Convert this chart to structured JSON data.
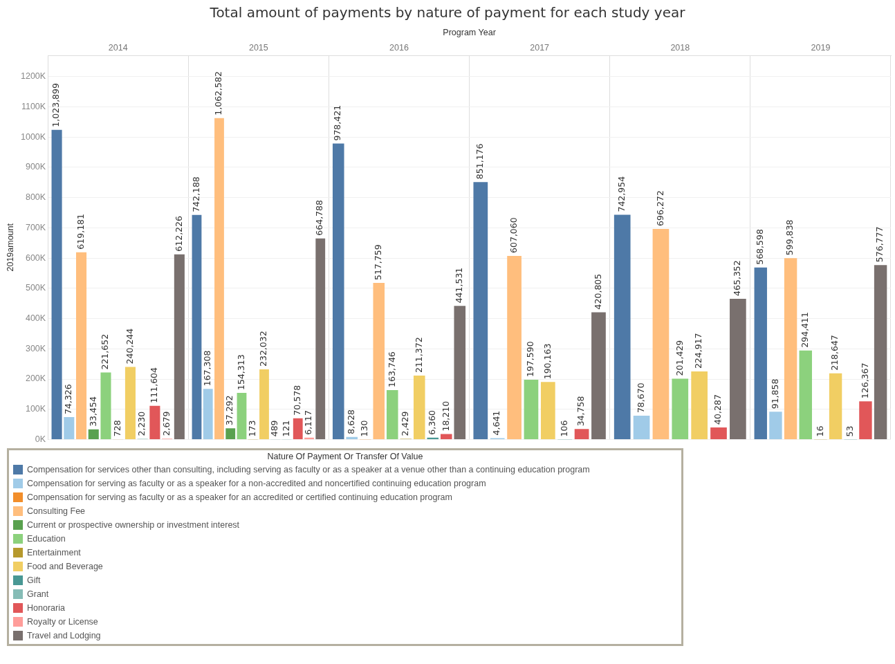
{
  "chart_data": {
    "type": "bar",
    "title": "Total amount of payments by nature of payment for each study year",
    "xlabel": "Program Year",
    "ylabel": "2019amount",
    "legend_title": "Nature Of Payment Or Transfer Of Value",
    "categories": [
      "2014",
      "2015",
      "2016",
      "2017",
      "2018",
      "2019"
    ],
    "series": [
      {
        "name": "Compensation for services other than consulting, including serving as faculty or as a speaker at a venue other than a continuing education program",
        "color": "#4e79a7",
        "values": [
          1023899,
          742188,
          978421,
          851176,
          742954,
          568598
        ],
        "value_labels": [
          "1,023,899",
          "742,188",
          "978,421",
          "851,176",
          "742,954",
          "568,598"
        ]
      },
      {
        "name": "Compensation for serving as faculty or as a speaker for a non-accredited and noncertified continuing education program",
        "color": "#a0cbe8",
        "values": [
          74326,
          167308,
          8628,
          4641,
          78670,
          91858
        ],
        "value_labels": [
          "74,326",
          "167,308",
          "8,628",
          "4,641",
          "78,670",
          "91,858"
        ]
      },
      {
        "name": "Compensation for serving as faculty or as a speaker for an accredited or certified continuing education program",
        "color": "#f28e2b",
        "values": [
          null,
          null,
          130,
          null,
          null,
          null
        ],
        "value_labels": [
          null,
          null,
          "130",
          null,
          null,
          null
        ]
      },
      {
        "name": "Consulting Fee",
        "color": "#ffbe7d",
        "values": [
          619181,
          1062582,
          517759,
          607060,
          696272,
          599838
        ],
        "value_labels": [
          "619,181",
          "1,062,582",
          "517,759",
          "607,060",
          "696,272",
          "599,838"
        ]
      },
      {
        "name": "Current or prospective ownership or investment interest",
        "color": "#59a14f",
        "values": [
          33454,
          37292,
          null,
          null,
          null,
          null
        ],
        "value_labels": [
          "33,454",
          "37,292",
          null,
          null,
          null,
          null
        ]
      },
      {
        "name": "Education",
        "color": "#8cd17d",
        "values": [
          221652,
          154313,
          163746,
          197590,
          201429,
          294411
        ],
        "value_labels": [
          "221,652",
          "154,313",
          "163,746",
          "197,590",
          "201,429",
          "294,411"
        ]
      },
      {
        "name": "Entertainment",
        "color": "#b6992d",
        "values": [
          728,
          173,
          2429,
          null,
          null,
          16
        ],
        "value_labels": [
          "728",
          "173",
          "2,429",
          null,
          null,
          "16"
        ]
      },
      {
        "name": "Food and Beverage",
        "color": "#f1ce63",
        "values": [
          240244,
          232032,
          211372,
          190163,
          224917,
          218647
        ],
        "value_labels": [
          "240,244",
          "232,032",
          "211,372",
          "190,163",
          "224,917",
          "218,647"
        ]
      },
      {
        "name": "Gift",
        "color": "#499894",
        "values": [
          null,
          489,
          6360,
          106,
          null,
          53
        ],
        "value_labels": [
          null,
          "489",
          "6,360",
          "106",
          null,
          "53"
        ]
      },
      {
        "name": "Grant",
        "color": "#86bcb6",
        "values": [
          2230,
          121,
          null,
          null,
          null,
          null
        ],
        "value_labels": [
          "2,230",
          "121",
          null,
          null,
          null,
          null
        ]
      },
      {
        "name": "Honoraria",
        "color": "#e15759",
        "values": [
          111604,
          70578,
          18210,
          34758,
          40287,
          126367
        ],
        "value_labels": [
          "111,604",
          "70,578",
          "18,210",
          "34,758",
          "40,287",
          "126,367"
        ]
      },
      {
        "name": "Royalty or License",
        "color": "#ff9d9a",
        "values": [
          2679,
          6117,
          null,
          null,
          null,
          null
        ],
        "value_labels": [
          "2,679",
          "6,117",
          null,
          null,
          null,
          null
        ]
      },
      {
        "name": "Travel and Lodging",
        "color": "#79706e",
        "values": [
          612226,
          664788,
          441531,
          420805,
          465352,
          576777
        ],
        "value_labels": [
          "612,226",
          "664,788",
          "441,531",
          "420,805",
          "465,352",
          "576,777"
        ]
      }
    ],
    "ylim": [
      0,
      1270000
    ],
    "yticks": [
      {
        "value": 0,
        "label": "0K"
      },
      {
        "value": 100000,
        "label": "100K"
      },
      {
        "value": 200000,
        "label": "200K"
      },
      {
        "value": 300000,
        "label": "300K"
      },
      {
        "value": 400000,
        "label": "400K"
      },
      {
        "value": 500000,
        "label": "500K"
      },
      {
        "value": 600000,
        "label": "600K"
      },
      {
        "value": 700000,
        "label": "700K"
      },
      {
        "value": 800000,
        "label": "800K"
      },
      {
        "value": 900000,
        "label": "900K"
      },
      {
        "value": 1000000,
        "label": "1000K"
      },
      {
        "value": 1100000,
        "label": "1100K"
      },
      {
        "value": 1200000,
        "label": "1200K"
      }
    ],
    "grid": true,
    "legend": "bottom left"
  }
}
